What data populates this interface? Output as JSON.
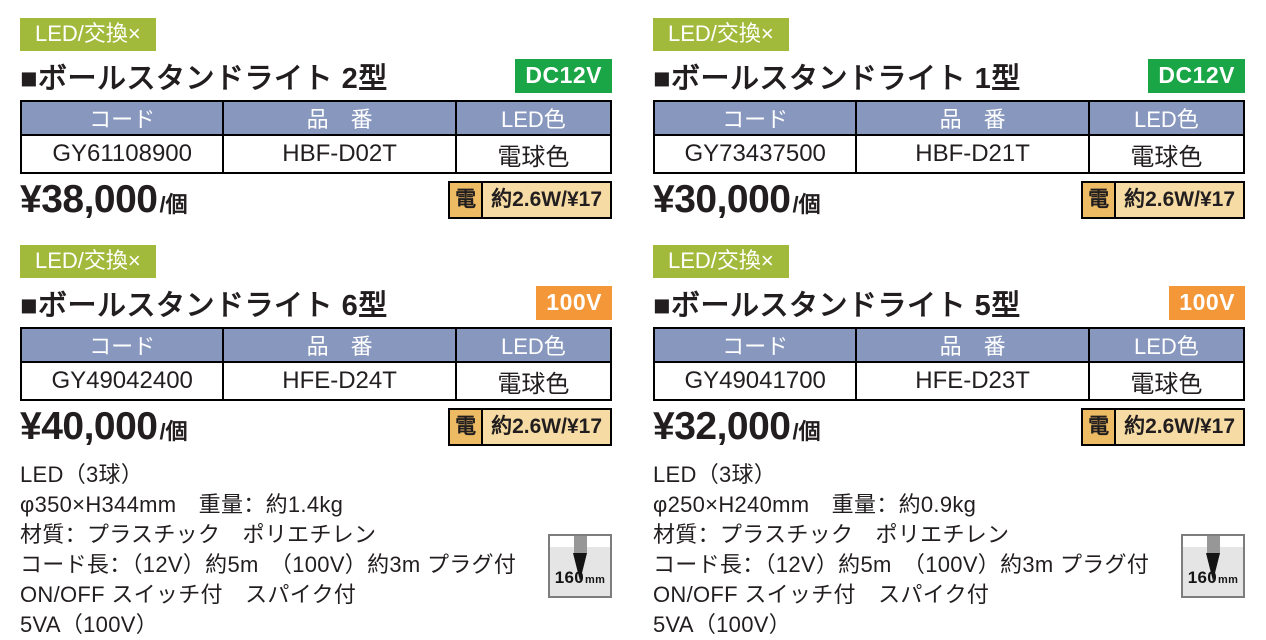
{
  "colors": {
    "tag_green": "#a2ba3c",
    "dc12v_green": "#1aa546",
    "v100_orange": "#f49738",
    "table_header_blue": "#8797bd",
    "power_label_bg": "#edbb64",
    "power_value_bg": "#f6dca4"
  },
  "products": [
    {
      "tag": "LED/交換×",
      "title": "■ボールスタンドライト 2型",
      "voltage": "DC12V",
      "table": {
        "headers": [
          "コード",
          "品　番",
          "LED色"
        ],
        "row": [
          "GY61108900",
          "HBF-D02T",
          "電球色"
        ]
      },
      "price": {
        "amount": "¥38,000",
        "unit": "/個"
      },
      "power": {
        "label": "電",
        "value": "約2.6W/¥17"
      }
    },
    {
      "tag": "LED/交換×",
      "title": "■ボールスタンドライト 1型",
      "voltage": "DC12V",
      "table": {
        "headers": [
          "コード",
          "品　番",
          "LED色"
        ],
        "row": [
          "GY73437500",
          "HBF-D21T",
          "電球色"
        ]
      },
      "price": {
        "amount": "¥30,000",
        "unit": "/個"
      },
      "power": {
        "label": "電",
        "value": "約2.6W/¥17"
      }
    },
    {
      "tag": "LED/交換×",
      "title": "■ボールスタンドライト 6型",
      "voltage": "100V",
      "table": {
        "headers": [
          "コード",
          "品　番",
          "LED色"
        ],
        "row": [
          "GY49042400",
          "HFE-D24T",
          "電球色"
        ]
      },
      "price": {
        "amount": "¥40,000",
        "unit": "/個"
      },
      "power": {
        "label": "電",
        "value": "約2.6W/¥17"
      },
      "specs": [
        "LED（3球）",
        "φ350×H344mm　重量：約1.4kg",
        "材質：プラスチック　ポリエチレン",
        "コード長：（12V）約5m　（100V）約3m プラグ付",
        "ON/OFF スイッチ付　スパイク付",
        "5VA（100V）"
      ],
      "spike": {
        "size": "160",
        "unit": "mm"
      }
    },
    {
      "tag": "LED/交換×",
      "title": "■ボールスタンドライト 5型",
      "voltage": "100V",
      "table": {
        "headers": [
          "コード",
          "品　番",
          "LED色"
        ],
        "row": [
          "GY49041700",
          "HFE-D23T",
          "電球色"
        ]
      },
      "price": {
        "amount": "¥32,000",
        "unit": "/個"
      },
      "power": {
        "label": "電",
        "value": "約2.6W/¥17"
      },
      "specs": [
        "LED（3球）",
        "φ250×H240mm　重量：約0.9kg",
        "材質：プラスチック　ポリエチレン",
        "コード長：（12V）約5m　（100V）約3m プラグ付",
        "ON/OFF スイッチ付　スパイク付",
        "5VA（100V）"
      ],
      "spike": {
        "size": "160",
        "unit": "mm"
      }
    }
  ]
}
